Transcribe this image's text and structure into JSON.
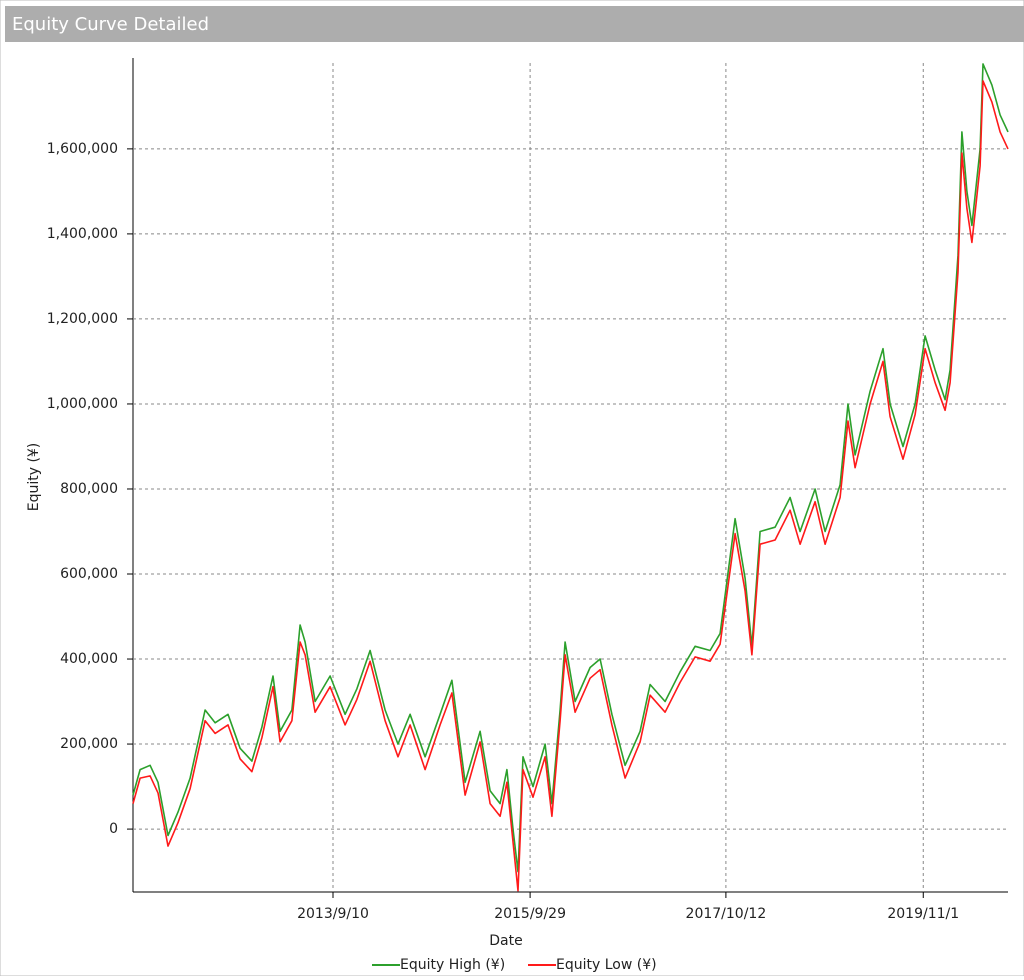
{
  "chart_data": {
    "type": "line",
    "title": "Equity Curve Detailed",
    "x_label": "Date",
    "y_label": "Equity (¥)",
    "x": [
      "2011/8/12",
      "2011/9/8",
      "2011/10/16",
      "2011/11/15",
      "2011/12/23",
      "2012/1/30",
      "2012/3/16",
      "2012/5/12",
      "2012/6/19",
      "2012/8/7",
      "2012/9/22",
      "2012/11/6",
      "2012/12/14",
      "2013/1/25",
      "2013/2/21",
      "2013/4/7",
      "2013/5/8",
      "2013/5/27",
      "2013/7/4",
      "2013/8/30",
      "2013/10/26",
      "2013/12/10",
      "2014/1/29",
      "2014/3/27",
      "2014/5/15",
      "2014/6/30",
      "2014/8/26",
      "2014/10/22",
      "2014/12/6",
      "2015/1/25",
      "2015/3/23",
      "2015/4/30",
      "2015/6/7",
      "2015/7/3",
      "2015/7/26",
      "2015/8/14",
      "2015/9/2",
      "2015/10/10",
      "2015/11/25",
      "2015/12/21",
      "2016/1/21",
      "2016/2/9",
      "2016/3/18",
      "2016/5/14",
      "2016/6/21",
      "2016/8/5",
      "2016/9/24",
      "2016/11/20",
      "2016/12/28",
      "2017/2/23",
      "2017/4/21",
      "2017/6/17",
      "2017/8/13",
      "2017/9/20",
      "2017/11/16",
      "2017/12/24",
      "2018/1/19",
      "2018/2/19",
      "2018/4/17",
      "2018/6/13",
      "2018/7/21",
      "2018/9/16",
      "2018/10/24",
      "2018/12/20",
      "2019/1/19",
      "2019/2/15",
      "2019/4/13",
      "2019/6/1",
      "2019/6/28",
      "2019/8/16",
      "2019/10/1",
      "2019/11/8",
      "2019/12/16",
      "2020/1/23",
      "2020/2/11",
      "2020/3/12",
      "2020/3/27",
      "2020/4/15",
      "2020/5/4",
      "2020/6/4",
      "2020/6/15",
      "2020/7/19",
      "2020/8/19",
      "2020/9/18"
    ],
    "series": [
      {
        "name": "Equity High (¥)",
        "color": "#2ca02c",
        "values": [
          80000,
          140000,
          150000,
          110000,
          -15000,
          40000,
          120000,
          280000,
          250000,
          270000,
          190000,
          160000,
          240000,
          360000,
          230000,
          280000,
          480000,
          440000,
          300000,
          360000,
          270000,
          330000,
          420000,
          280000,
          200000,
          270000,
          170000,
          270000,
          350000,
          110000,
          230000,
          90000,
          60000,
          140000,
          0,
          -100000,
          170000,
          100000,
          200000,
          60000,
          280000,
          440000,
          300000,
          380000,
          400000,
          270000,
          150000,
          230000,
          340000,
          300000,
          370000,
          430000,
          420000,
          460000,
          730000,
          590000,
          430000,
          700000,
          710000,
          780000,
          700000,
          800000,
          700000,
          810000,
          1000000,
          880000,
          1030000,
          1130000,
          1000000,
          900000,
          1000000,
          1160000,
          1080000,
          1010000,
          1080000,
          1350000,
          1640000,
          1500000,
          1420000,
          1600000,
          1800000,
          1750000,
          1680000,
          1640000
        ]
      },
      {
        "name": "Equity Low (¥)",
        "color": "#ff1a1a",
        "values": [
          60000,
          120000,
          125000,
          85000,
          -40000,
          15000,
          95000,
          255000,
          225000,
          245000,
          165000,
          135000,
          215000,
          335000,
          205000,
          255000,
          440000,
          410000,
          275000,
          335000,
          245000,
          305000,
          395000,
          255000,
          170000,
          245000,
          140000,
          245000,
          320000,
          80000,
          205000,
          60000,
          30000,
          110000,
          -30000,
          -145000,
          140000,
          75000,
          170000,
          30000,
          255000,
          410000,
          275000,
          355000,
          375000,
          245000,
          120000,
          205000,
          315000,
          275000,
          345000,
          405000,
          395000,
          435000,
          695000,
          560000,
          410000,
          670000,
          680000,
          750000,
          670000,
          770000,
          670000,
          780000,
          960000,
          850000,
          1000000,
          1100000,
          970000,
          870000,
          975000,
          1130000,
          1050000,
          985000,
          1050000,
          1310000,
          1590000,
          1460000,
          1380000,
          1560000,
          1760000,
          1710000,
          1640000,
          1600000
        ]
      }
    ],
    "xlim": [
      "2011/8/12",
      "2020/9/18"
    ],
    "xticks": [
      "2013/9/10",
      "2015/9/29",
      "2017/10/12",
      "2019/11/1"
    ],
    "ylim": [
      -148000,
      1802000
    ],
    "yticks": [
      0,
      {
        "value": 200000,
        "label": "200,000"
      },
      {
        "value": 400000,
        "label": "400,000"
      },
      {
        "value": 600000,
        "label": "600,000"
      },
      {
        "value": 800000,
        "label": "800,000"
      },
      {
        "value": 1000000,
        "label": "1,000,000"
      },
      {
        "value": 1200000,
        "label": "1,200,000"
      },
      {
        "value": 1400000,
        "label": "1,400,000"
      },
      {
        "value": 1600000,
        "label": "1,600,000"
      }
    ],
    "grid": true
  }
}
